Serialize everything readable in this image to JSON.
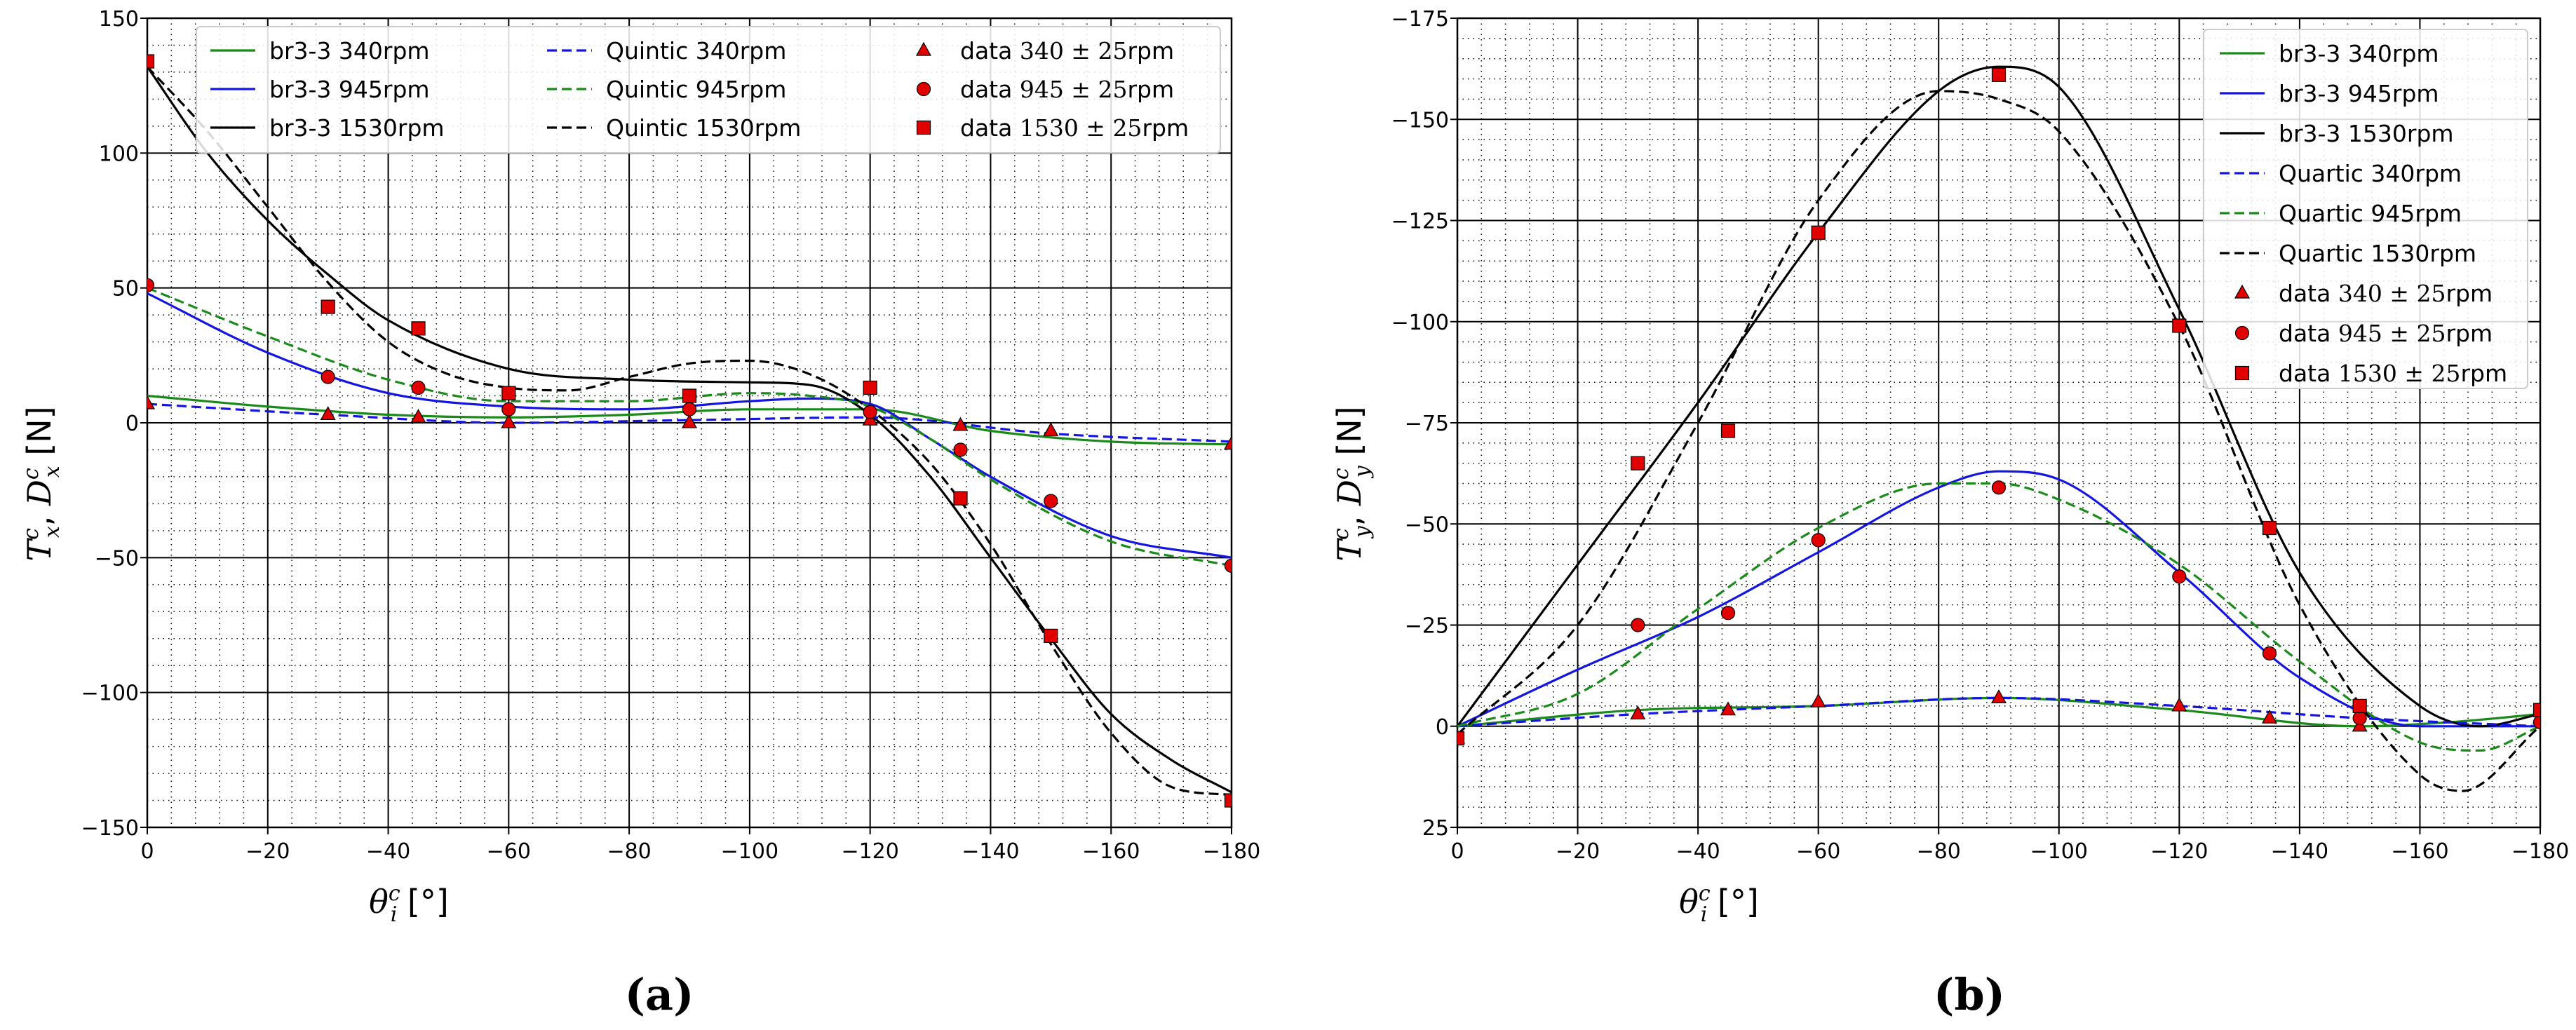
{
  "chart_data": [
    {
      "panel": "(a)",
      "type": "line",
      "xlabel": "θ_i^c [°]",
      "ylabel": "T_x^c, D_x^c [N]",
      "xlim": [
        0,
        -180
      ],
      "ylim": [
        -150,
        150
      ],
      "xticks": [
        "0",
        "−20",
        "−40",
        "−60",
        "−80",
        "−100",
        "−120",
        "−140",
        "−160",
        "−180"
      ],
      "xtick_values": [
        0,
        -20,
        -40,
        -60,
        -80,
        -100,
        -120,
        -140,
        -160,
        -180
      ],
      "yticks": [
        "150",
        "100",
        "50",
        "0",
        "−50",
        "−100",
        "−150"
      ],
      "ytick_values": [
        150,
        100,
        50,
        0,
        -50,
        -100,
        -150
      ],
      "grid": true,
      "legend_position": "top",
      "series": [
        {
          "name": "br3-3 340rpm",
          "color": "#1a8a1a",
          "dash": "solid",
          "x": [
            0,
            -20,
            -40,
            -60,
            -80,
            -100,
            -120,
            -140,
            -160,
            -180
          ],
          "y": [
            10,
            6,
            3,
            2,
            3,
            5,
            5,
            -3,
            -7,
            -8
          ]
        },
        {
          "name": "br3-3 945rpm",
          "color": "#1515e0",
          "dash": "solid",
          "x": [
            0,
            -20,
            -40,
            -60,
            -80,
            -100,
            -110,
            -120,
            -130,
            -140,
            -160,
            -180
          ],
          "y": [
            48,
            26,
            11,
            6,
            5,
            8,
            9,
            7,
            -6,
            -20,
            -42,
            -50
          ]
        },
        {
          "name": "br3-3 1530rpm",
          "color": "#000000",
          "dash": "solid",
          "x": [
            0,
            -10,
            -20,
            -30,
            -40,
            -60,
            -80,
            -100,
            -110,
            -120,
            -130,
            -140,
            -150,
            -160,
            -170,
            -180
          ],
          "y": [
            132,
            100,
            75,
            55,
            38,
            20,
            16,
            15,
            14,
            3,
            -20,
            -50,
            -80,
            -108,
            -125,
            -137
          ]
        },
        {
          "name": "Quintic 340rpm",
          "color": "#1515e0",
          "dash": "dashed",
          "x": [
            0,
            -30,
            -60,
            -90,
            -120,
            -150,
            -180
          ],
          "y": [
            7,
            3,
            0,
            1,
            2,
            -4,
            -7
          ]
        },
        {
          "name": "Quintic 945rpm",
          "color": "#1a8a1a",
          "dash": "dashed",
          "x": [
            0,
            -20,
            -40,
            -60,
            -80,
            -100,
            -110,
            -120,
            -130,
            -140,
            -160,
            -180
          ],
          "y": [
            50,
            32,
            16,
            8,
            8,
            11,
            10,
            6,
            -6,
            -21,
            -44,
            -53
          ]
        },
        {
          "name": "Quintic 1530rpm",
          "color": "#000000",
          "dash": "dashed",
          "x": [
            0,
            -10,
            -20,
            -30,
            -40,
            -50,
            -60,
            -70,
            -80,
            -90,
            -100,
            -110,
            -120,
            -130,
            -140,
            -150,
            -160,
            -170,
            -180
          ],
          "y": [
            132,
            108,
            80,
            52,
            30,
            18,
            13,
            12,
            17,
            22,
            23,
            18,
            5,
            -15,
            -45,
            -82,
            -115,
            -135,
            -138
          ]
        },
        {
          "name": "data 340 ± 25rpm",
          "marker": "triangle",
          "color": "#e00000",
          "x": [
            0,
            -30,
            -45,
            -60,
            -90,
            -120,
            -135,
            -150,
            -180
          ],
          "y": [
            7,
            3,
            2,
            0,
            0,
            1,
            -1,
            -3,
            -8
          ]
        },
        {
          "name": "data 945 ± 25rpm",
          "marker": "circle",
          "color": "#e00000",
          "x": [
            0,
            -30,
            -45,
            -60,
            -90,
            -120,
            -135,
            -150,
            -180
          ],
          "y": [
            51,
            17,
            13,
            5,
            5,
            4,
            -10,
            -29,
            -53
          ]
        },
        {
          "name": "data 1530 ± 25rpm",
          "marker": "square",
          "color": "#e00000",
          "x": [
            0,
            -30,
            -45,
            -60,
            -90,
            -120,
            -135,
            -150,
            -180
          ],
          "y": [
            134,
            43,
            35,
            11,
            10,
            13,
            -28,
            -79,
            -140
          ]
        }
      ]
    },
    {
      "panel": "(b)",
      "type": "line",
      "xlabel": "θ_i^c [°]",
      "ylabel": "T_y^c, D_y^c [N]",
      "xlim": [
        0,
        -180
      ],
      "ylim": [
        25,
        -175
      ],
      "xticks": [
        "0",
        "−20",
        "−40",
        "−60",
        "−80",
        "−100",
        "−120",
        "−140",
        "−160",
        "−180"
      ],
      "xtick_values": [
        0,
        -20,
        -40,
        -60,
        -80,
        -100,
        -120,
        -140,
        -160,
        -180
      ],
      "yticks": [
        "−175",
        "−150",
        "−125",
        "−100",
        "−75",
        "−50",
        "−25",
        "0",
        "25"
      ],
      "ytick_values": [
        -175,
        -150,
        -125,
        -100,
        -75,
        -50,
        -25,
        0,
        25
      ],
      "grid": true,
      "legend_position": "top-right",
      "series": [
        {
          "name": "br3-3 340rpm",
          "color": "#1a8a1a",
          "dash": "solid",
          "x": [
            0,
            -30,
            -60,
            -90,
            -120,
            -150,
            -165,
            -180
          ],
          "y": [
            0,
            -4,
            -5,
            -7,
            -4,
            0,
            -1,
            -3
          ]
        },
        {
          "name": "br3-3 945rpm",
          "color": "#1515e0",
          "dash": "solid",
          "x": [
            0,
            -20,
            -40,
            -60,
            -80,
            -90,
            -100,
            -120,
            -140,
            -160,
            -180
          ],
          "y": [
            0,
            -14,
            -27,
            -43,
            -59,
            -63,
            -61,
            -38,
            -12,
            0,
            0
          ]
        },
        {
          "name": "br3-3 1530rpm",
          "color": "#000000",
          "dash": "solid",
          "x": [
            0,
            -20,
            -40,
            -60,
            -80,
            -90,
            -100,
            -120,
            -140,
            -160,
            -170,
            -180
          ],
          "y": [
            0,
            -40,
            -80,
            -122,
            -157,
            -163,
            -158,
            -103,
            -38,
            -5,
            0,
            -3
          ]
        },
        {
          "name": "Quartic 340rpm",
          "color": "#1515e0",
          "dash": "dashed",
          "x": [
            0,
            -30,
            -60,
            -90,
            -120,
            -150,
            -180
          ],
          "y": [
            0,
            -3,
            -5,
            -7,
            -5,
            -2,
            0
          ]
        },
        {
          "name": "Quartic 945rpm",
          "color": "#1a8a1a",
          "dash": "dashed",
          "x": [
            0,
            -20,
            -40,
            -60,
            -80,
            -90,
            -100,
            -120,
            -140,
            -160,
            -170,
            -180
          ],
          "y": [
            0,
            -8,
            -29,
            -49,
            -60,
            -60,
            -56,
            -40,
            -16,
            4,
            6,
            0
          ]
        },
        {
          "name": "Quartic 1530rpm",
          "color": "#000000",
          "dash": "dashed",
          "x": [
            0,
            -20,
            -40,
            -60,
            -80,
            -90,
            -100,
            -120,
            -140,
            -160,
            -167,
            -180
          ],
          "y": [
            2,
            -25,
            -75,
            -130,
            -157,
            -155,
            -147,
            -99,
            -30,
            12,
            16,
            0
          ]
        },
        {
          "name": "data 340 ± 25rpm",
          "marker": "triangle",
          "color": "#e00000",
          "x": [
            0,
            -30,
            -45,
            -60,
            -90,
            -120,
            -135,
            -150,
            -180
          ],
          "y": [
            3,
            -3,
            -4,
            -6,
            -7,
            -5,
            -2,
            0,
            -2
          ]
        },
        {
          "name": "data 945 ± 25rpm",
          "marker": "circle",
          "color": "#e00000",
          "x": [
            0,
            -30,
            -45,
            -60,
            -90,
            -120,
            -135,
            -150,
            -180
          ],
          "y": [
            3,
            -25,
            -28,
            -46,
            -59,
            -37,
            -18,
            -2,
            -1
          ]
        },
        {
          "name": "data 1530 ± 25rpm",
          "marker": "square",
          "color": "#e00000",
          "x": [
            0,
            -30,
            -45,
            -60,
            -90,
            -120,
            -135,
            -150,
            -180
          ],
          "y": [
            3,
            -65,
            -73,
            -122,
            -161,
            -99,
            -49,
            -5,
            -4
          ]
        }
      ]
    }
  ]
}
